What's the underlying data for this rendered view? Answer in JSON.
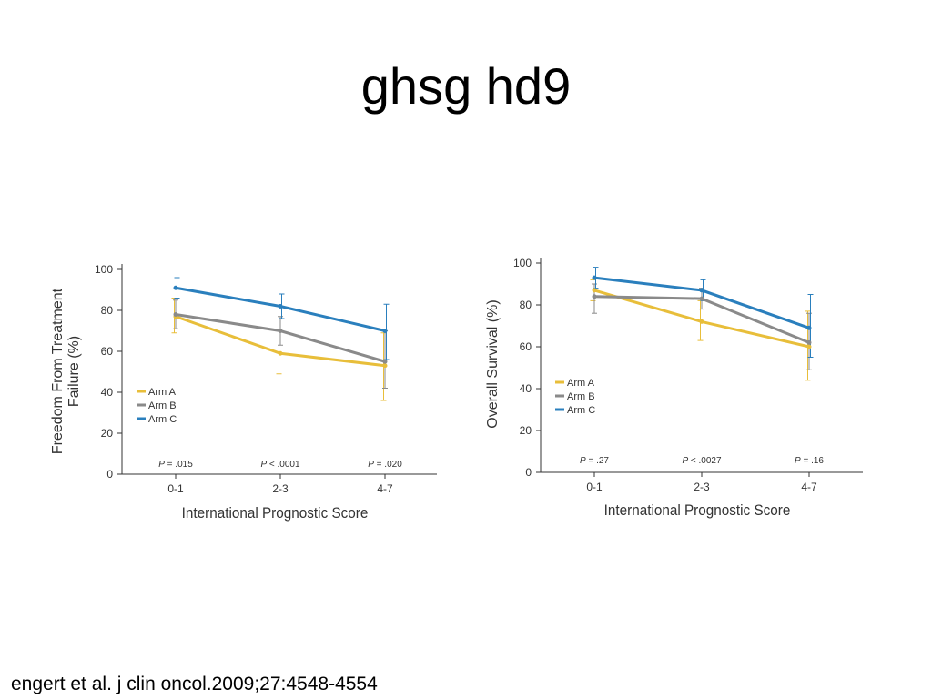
{
  "slide": {
    "title": "ghsg hd9",
    "citation": "engert et al. j clin oncol.2009;27:4548-4554"
  },
  "colors": {
    "arm_a": "#e8be3a",
    "arm_b": "#8a8a8a",
    "arm_c": "#2a7fbd",
    "axis": "#333333"
  },
  "chart_data": [
    {
      "type": "line",
      "ylabel_lines": [
        "Freedom From Treatment",
        "Failure (%)"
      ],
      "xlabel": "International Prognostic Score",
      "categories": [
        "0-1",
        "2-3",
        "4-7"
      ],
      "ylim": [
        0,
        100
      ],
      "yticks": [
        0,
        20,
        40,
        60,
        80,
        100
      ],
      "legend_position": "left",
      "pvalues": [
        {
          "prefix": "P",
          "text": " = .015"
        },
        {
          "prefix": "P",
          "text": " < .0001"
        },
        {
          "prefix": "P",
          "text": " = .020"
        }
      ],
      "series": [
        {
          "name": "Arm A",
          "values": [
            77,
            59,
            53
          ],
          "err_low": [
            69,
            49,
            36
          ],
          "err_high": [
            86,
            70,
            69
          ]
        },
        {
          "name": "Arm B",
          "values": [
            78,
            70,
            55
          ],
          "err_low": [
            71,
            63,
            42
          ],
          "err_high": [
            85,
            77,
            70
          ]
        },
        {
          "name": "Arm C",
          "values": [
            91,
            82,
            70
          ],
          "err_low": [
            86,
            76,
            56
          ],
          "err_high": [
            96,
            88,
            83
          ]
        }
      ]
    },
    {
      "type": "line",
      "ylabel_lines": [
        "Overall Survival (%)"
      ],
      "xlabel": "International Prognostic Score",
      "categories": [
        "0-1",
        "2-3",
        "4-7"
      ],
      "ylim": [
        0,
        100
      ],
      "yticks": [
        0,
        20,
        40,
        60,
        80,
        100
      ],
      "legend_position": "left",
      "pvalues": [
        {
          "prefix": "P",
          "text": " = .27"
        },
        {
          "prefix": "P",
          "text": " < .0027"
        },
        {
          "prefix": "P",
          "text": " = .16"
        }
      ],
      "series": [
        {
          "name": "Arm A",
          "values": [
            87,
            72,
            60
          ],
          "err_low": [
            82,
            63,
            44
          ],
          "err_high": [
            92,
            82,
            77
          ]
        },
        {
          "name": "Arm B",
          "values": [
            84,
            83,
            62
          ],
          "err_low": [
            76,
            78,
            49
          ],
          "err_high": [
            90,
            88,
            76
          ]
        },
        {
          "name": "Arm C",
          "values": [
            93,
            87,
            69
          ],
          "err_low": [
            88,
            82,
            55
          ],
          "err_high": [
            98,
            92,
            85
          ]
        }
      ]
    }
  ]
}
